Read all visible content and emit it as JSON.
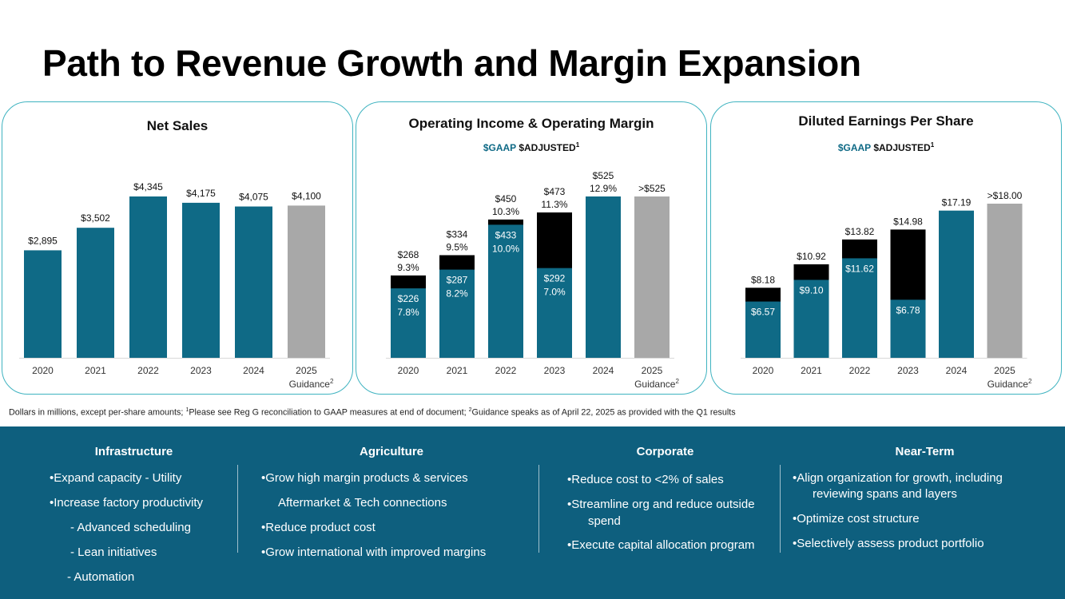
{
  "title": "Path to Revenue Growth and Margin Expansion",
  "colors": {
    "gaap": "#0f6a86",
    "adjusted": "#000000",
    "guidance": "#a8a8a8",
    "band": "#0e5f7e",
    "border": "#3fb3c0"
  },
  "legend": {
    "gaap": "$GAAP",
    "adjusted": "$ADJUSTED",
    "sup": "1"
  },
  "guidance_sup": "2",
  "chart_data": [
    {
      "type": "bar",
      "title": "Net Sales",
      "categories": [
        "2020",
        "2021",
        "2022",
        "2023",
        "2024",
        "2025"
      ],
      "guidance_label": "Guidance",
      "values": [
        2895,
        3502,
        4345,
        4175,
        4075,
        4100
      ],
      "labels": [
        "$2,895",
        "$3,502",
        "$4,345",
        "$4,175",
        "$4,075",
        "$4,100"
      ],
      "guidance_index": 5,
      "ylim": [
        0,
        4345
      ]
    },
    {
      "type": "bar",
      "title": "Operating Income & Operating Margin",
      "categories": [
        "2020",
        "2021",
        "2022",
        "2023",
        "2024",
        "2025"
      ],
      "guidance_label": "Guidance",
      "series": [
        {
          "name": "GAAP",
          "values": [
            226,
            287,
            433,
            292,
            525,
            null
          ]
        },
        {
          "name": "Adjusted",
          "values": [
            268,
            334,
            450,
            473,
            525,
            525
          ]
        }
      ],
      "gaap_labels": [
        [
          "$226",
          "7.8%"
        ],
        [
          "$287",
          "8.2%"
        ],
        [
          "$433",
          "10.0%"
        ],
        [
          "$292",
          "7.0%"
        ],
        [],
        []
      ],
      "adjusted_labels": [
        [
          "$268",
          "9.3%"
        ],
        [
          "$334",
          "9.5%"
        ],
        [
          "$450",
          "10.3%"
        ],
        [
          "$473",
          "11.3%"
        ],
        [
          "$525",
          "12.9%"
        ],
        [
          ">$525"
        ]
      ],
      "guidance_index": 5,
      "ylim": [
        0,
        525
      ]
    },
    {
      "type": "bar",
      "title": "Diluted Earnings Per Share",
      "categories": [
        "2020",
        "2021",
        "2022",
        "2023",
        "2024",
        "2025"
      ],
      "guidance_label": "Guidance",
      "series": [
        {
          "name": "GAAP",
          "values": [
            6.57,
            9.1,
            11.62,
            6.78,
            17.19,
            null
          ]
        },
        {
          "name": "Adjusted",
          "values": [
            8.18,
            10.92,
            13.82,
            14.98,
            17.19,
            18.0
          ]
        }
      ],
      "gaap_labels": [
        [
          "$6.57"
        ],
        [
          "$9.10"
        ],
        [
          "$11.62"
        ],
        [
          "$6.78"
        ],
        [],
        []
      ],
      "adjusted_labels": [
        [
          "$8.18"
        ],
        [
          "$10.92"
        ],
        [
          "$13.82"
        ],
        [
          "$14.98"
        ],
        [
          "$17.19"
        ],
        [
          ">$18.00"
        ]
      ],
      "guidance_index": 5,
      "ylim": [
        0,
        18.0
      ]
    }
  ],
  "footnote": {
    "part1": "Dollars in millions, except per-share amounts; ",
    "sup1": "1",
    "part2": "Please see Reg G reconciliation to GAAP measures at end of document; ",
    "sup2": "2",
    "part3": "Guidance speaks as of April 22, 2025 as provided with the Q1 results"
  },
  "bottom": {
    "infrastructure": {
      "title": "Infrastructure",
      "items": [
        "•Expand capacity - Utility",
        "•Increase factory productivity",
        "-  Advanced scheduling",
        "-  Lean initiatives",
        "-   Automation"
      ]
    },
    "agriculture": {
      "title": "Agriculture",
      "items": [
        "•Grow high margin products & services",
        "Aftermarket & Tech connections",
        "•Reduce product cost",
        "•Grow international with improved margins"
      ]
    },
    "corporate": {
      "title": "Corporate",
      "items": [
        "•Reduce cost to <2% of sales",
        "•Streamline org and reduce outside",
        "spend",
        "•Execute capital allocation program"
      ]
    },
    "near_term": {
      "title": "Near-Term",
      "items": [
        "•Align organization for growth, including",
        "reviewing spans and layers",
        "•Optimize cost structure",
        "•Selectively assess product portfolio"
      ]
    }
  }
}
